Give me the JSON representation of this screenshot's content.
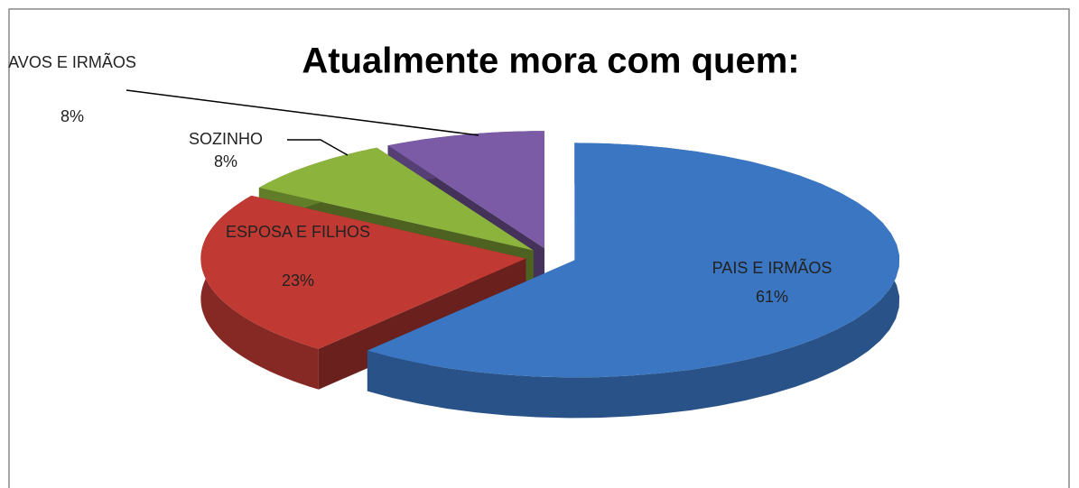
{
  "chart_data": {
    "type": "pie",
    "title": "Atualmente mora com quem:",
    "categories": [
      "PAIS E IRMÃOS",
      "ESPOSA E FILHOS",
      "SOZINHO",
      "AVOS E IRMÃOS"
    ],
    "values": [
      61,
      23,
      8,
      8
    ],
    "value_labels": [
      "61%",
      "23%",
      "8%",
      "8%"
    ],
    "colors": [
      "#3b76c2",
      "#c03a33",
      "#8cb33c",
      "#7b5aa6"
    ]
  }
}
